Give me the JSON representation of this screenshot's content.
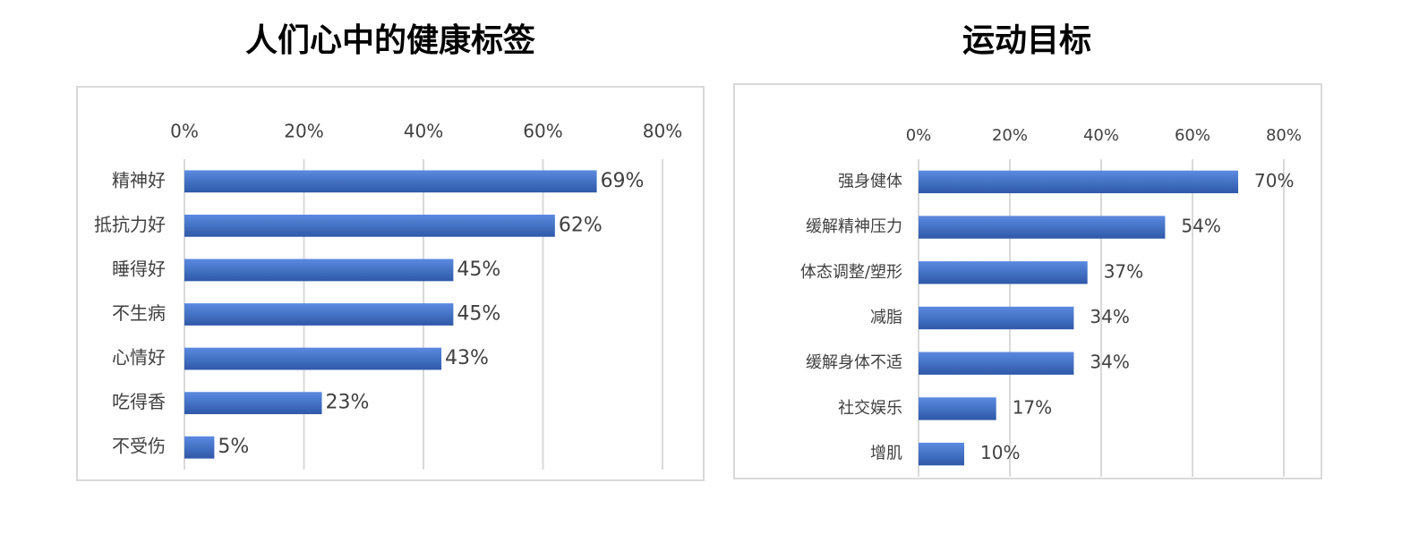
{
  "chart_data": [
    {
      "type": "bar",
      "orientation": "horizontal",
      "title": "人们心中的健康标签",
      "categories": [
        "精神好",
        "抵抗力好",
        "睡得好",
        "不生病",
        "心情好",
        "吃得香",
        "不受伤"
      ],
      "values": [
        69,
        62,
        45,
        45,
        43,
        23,
        5
      ],
      "value_labels": [
        "69%",
        "62%",
        "45%",
        "45%",
        "43%",
        "23%",
        "5%"
      ],
      "color": "#4472c4",
      "xlim": [
        0,
        80
      ],
      "xticks": [
        {
          "value": 0,
          "label": "0%"
        },
        {
          "value": 20,
          "label": "20%"
        },
        {
          "value": 40,
          "label": "40%"
        },
        {
          "value": 60,
          "label": "60%"
        },
        {
          "value": 80,
          "label": "80%"
        }
      ],
      "grid": true
    },
    {
      "type": "bar",
      "orientation": "horizontal",
      "title": "运动目标",
      "categories": [
        "强身健体",
        "缓解精神压力",
        "体态调整/塑形",
        "减脂",
        "缓解身体不适",
        "社交娱乐",
        "增肌"
      ],
      "values": [
        70,
        54,
        37,
        34,
        34,
        17,
        10
      ],
      "value_labels": [
        "70%",
        "54%",
        "37%",
        "34%",
        "34%",
        "17%",
        "10%"
      ],
      "color": "#4472c4",
      "xlim": [
        0,
        80
      ],
      "xticks": [
        {
          "value": 0,
          "label": "0%"
        },
        {
          "value": 20,
          "label": "20%"
        },
        {
          "value": 40,
          "label": "40%"
        },
        {
          "value": 60,
          "label": "60%"
        },
        {
          "value": 80,
          "label": "80%"
        }
      ],
      "grid": true
    }
  ]
}
